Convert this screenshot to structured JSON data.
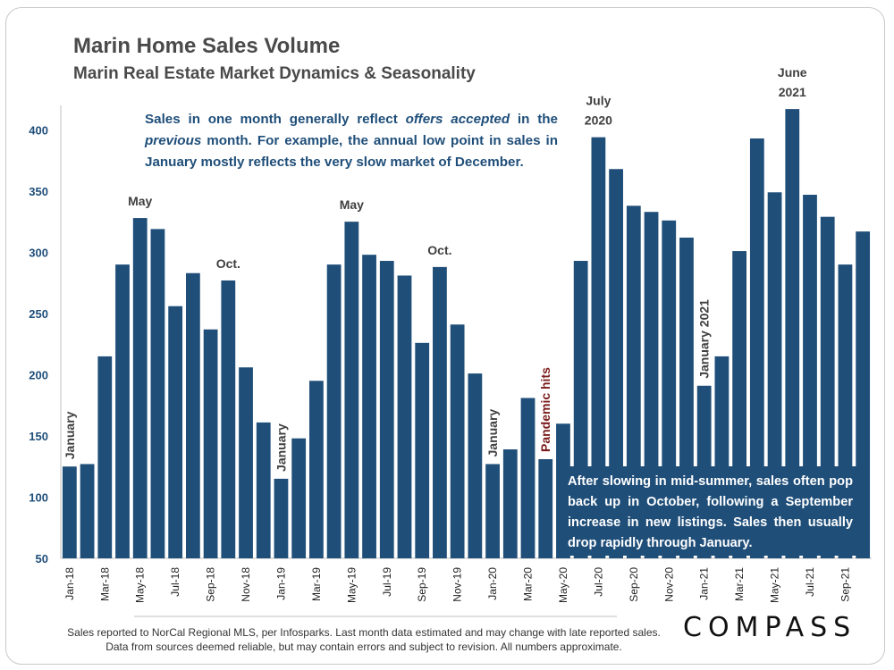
{
  "header": {
    "title": "Marin Home Sales Volume",
    "subtitle": "Marin Real Estate Market Dynamics & Seasonality"
  },
  "notes": {
    "note1_part1": "Sales in one month generally reflect ",
    "note1_em1": "offers accepted",
    "note1_part2": " in the ",
    "note1_em2": "previous",
    "note1_part3": " month. For example, the annual low point in sales in January mostly reflects the very slow market of December.",
    "note2": "After slowing in mid-summer, sales often pop back up in October, following a September increase in new listings. Sales then usually drop rapidly through January."
  },
  "footer": {
    "source": "Sales reported to NorCal Regional MLS, per Infosparks. Last month data estimated and may change with late reported sales. Data from sources deemed reliable, but may contain errors and subject to revision. All numbers approximate.",
    "logo": "COMPASS"
  },
  "colors": {
    "bar": "#1f4e79",
    "axis_text": "#1f4e79",
    "annotation": "#404040",
    "pandemic": "#7b1c1c"
  },
  "chart_data": {
    "type": "bar",
    "title": "Marin Home Sales Volume",
    "xlabel": "",
    "ylabel": "",
    "ylim": [
      50,
      420
    ],
    "yticks": [
      50,
      100,
      150,
      200,
      250,
      300,
      350,
      400
    ],
    "categories": [
      "Jan-18",
      "Feb-18",
      "Mar-18",
      "Apr-18",
      "May-18",
      "Jun-18",
      "Jul-18",
      "Aug-18",
      "Sep-18",
      "Oct-18",
      "Nov-18",
      "Dec-18",
      "Jan-19",
      "Feb-19",
      "Mar-19",
      "Apr-19",
      "May-19",
      "Jun-19",
      "Jul-19",
      "Aug-19",
      "Sep-19",
      "Oct-19",
      "Nov-19",
      "Dec-19",
      "Jan-20",
      "Feb-20",
      "Mar-20",
      "Apr-20",
      "May-20",
      "Jun-20",
      "Jul-20",
      "Aug-20",
      "Sep-20",
      "Oct-20",
      "Nov-20",
      "Dec-20",
      "Jan-21",
      "Feb-21",
      "Mar-21",
      "Apr-21",
      "May-21",
      "Jun-21",
      "Jul-21",
      "Aug-21",
      "Sep-21",
      "Oct-21"
    ],
    "values": [
      125,
      127,
      215,
      290,
      328,
      319,
      256,
      283,
      237,
      277,
      206,
      161,
      115,
      148,
      195,
      290,
      325,
      298,
      293,
      281,
      226,
      288,
      241,
      201,
      127,
      139,
      181,
      131,
      160,
      293,
      394,
      368,
      338,
      333,
      326,
      312,
      191,
      215,
      301,
      393,
      349,
      417,
      347,
      329,
      290,
      317
    ],
    "tick_labels": [
      "Jan-18",
      "Mar-18",
      "May-18",
      "Jul-18",
      "Sep-18",
      "Nov-18",
      "Jan-19",
      "Mar-19",
      "May-19",
      "Jul-19",
      "Sep-19",
      "Nov-19",
      "Jan-20",
      "Mar-20",
      "May-20",
      "Jul-20",
      "Sep-20",
      "Nov-20",
      "Jan-21",
      "Mar-21",
      "May-21",
      "Jul-21",
      "Sep-21"
    ],
    "annotations": [
      {
        "text": "January",
        "index": 0,
        "style": "vertical"
      },
      {
        "text": "May",
        "index": 4,
        "style": "horizontal"
      },
      {
        "text": "Oct.",
        "index": 9,
        "style": "horizontal"
      },
      {
        "text": "January",
        "index": 12,
        "style": "vertical"
      },
      {
        "text": "May",
        "index": 16,
        "style": "horizontal"
      },
      {
        "text": "Oct.",
        "index": 21,
        "style": "horizontal"
      },
      {
        "text": "January",
        "index": 24,
        "style": "vertical"
      },
      {
        "text": "Pandemic hits",
        "index": 27,
        "style": "vertical-pandemic"
      },
      {
        "text": "July",
        "index": 30,
        "style": "horizontal"
      },
      {
        "text": "2020",
        "index": 30,
        "style": "horizontal-line2"
      },
      {
        "text": "January 2021",
        "index": 36,
        "style": "vertical"
      },
      {
        "text": "June",
        "index": 41,
        "style": "horizontal"
      },
      {
        "text": "2021",
        "index": 41,
        "style": "horizontal-line2"
      }
    ]
  }
}
